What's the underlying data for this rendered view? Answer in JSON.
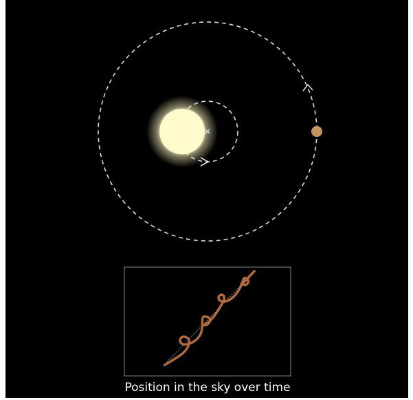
{
  "caption": "Position in the sky over time"
}
